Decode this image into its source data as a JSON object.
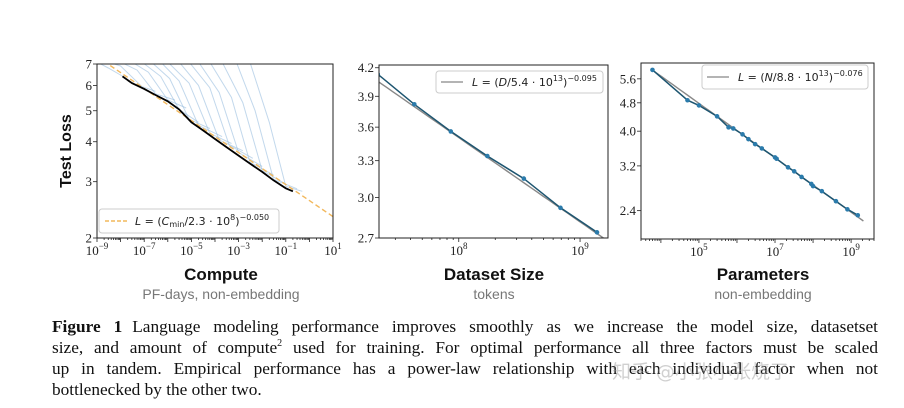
{
  "figure": {
    "caption": {
      "label": "Figure 1",
      "line1": "Language modeling performance improves smoothly as we increase the model size, datasetset",
      "line2a": "size, and amount of compute",
      "line2sup": "2",
      "line2b": " used for training.  For optimal performance all three factors must be scaled",
      "line3": "up in tandem.  Empirical performance has a power-law relationship with each individual factor when not",
      "line4": "bottlenecked by the other two."
    },
    "watermark": "知乎 @小张小张烧了"
  },
  "chart_data": [
    {
      "type": "line",
      "title": "Compute",
      "subtitle": "PF-days, non-embedding",
      "ylabel": "Test Loss",
      "xscale": "log",
      "yscale": "log",
      "xlim": [
        1e-09,
        10
      ],
      "ylim": [
        2,
        7
      ],
      "xticks": [
        -9,
        -7,
        -5,
        -3,
        -1,
        1
      ],
      "tick_base": "10",
      "yticks": [
        2,
        3,
        4,
        5,
        6,
        7
      ],
      "legend": {
        "placement": "lower-left",
        "p1": "L",
        "p2": " = (",
        "p3": "C",
        "p4": "min",
        "p5": "/2.3 · 10",
        "p6": "8",
        "p7": ")",
        "p8": "−0.050"
      },
      "fit": {
        "A": 230000000.0,
        "alpha": 0.05,
        "style": "dashed",
        "color": "#f2b85c"
      },
      "frontier": {
        "color": "#000000",
        "points": [
          [
            1.2e-08,
            6.4
          ],
          [
            3e-08,
            6.1
          ],
          [
            1e-07,
            5.85
          ],
          [
            3e-07,
            5.6
          ],
          [
            1e-06,
            5.35
          ],
          [
            3e-06,
            5.05
          ],
          [
            1e-05,
            4.6
          ],
          [
            3e-05,
            4.35
          ],
          [
            0.0001,
            4.08
          ],
          [
            0.0003,
            3.85
          ],
          [
            0.001,
            3.62
          ],
          [
            0.003,
            3.42
          ],
          [
            0.01,
            3.22
          ],
          [
            0.03,
            3.03
          ],
          [
            0.1,
            2.86
          ],
          [
            0.2,
            2.8
          ]
        ]
      },
      "learning_curves": {
        "color": "#8fb8dc",
        "curves": [
          [
            [
              1e-09,
              7.1
            ],
            [
              3e-09,
              6.8
            ],
            [
              1.5e-08,
              6.35
            ]
          ],
          [
            [
              3e-09,
              7.1
            ],
            [
              1e-08,
              6.9
            ],
            [
              8e-08,
              5.95
            ],
            [
              3e-07,
              5.75
            ]
          ],
          [
            [
              1e-08,
              7.1
            ],
            [
              5e-08,
              6.7
            ],
            [
              3e-07,
              5.65
            ],
            [
              2e-06,
              5.4
            ]
          ],
          [
            [
              3e-08,
              7.1
            ],
            [
              1.5e-07,
              6.6
            ],
            [
              1e-06,
              5.4
            ],
            [
              6e-06,
              5.1
            ]
          ],
          [
            [
              8e-08,
              7.1
            ],
            [
              5e-07,
              6.4
            ],
            [
              3e-06,
              5.05
            ],
            [
              2e-05,
              4.6
            ]
          ],
          [
            [
              2e-07,
              7.1
            ],
            [
              1.2e-06,
              6.3
            ],
            [
              8e-06,
              4.7
            ],
            [
              6e-05,
              4.4
            ]
          ],
          [
            [
              5e-07,
              7.1
            ],
            [
              3e-06,
              6.2
            ],
            [
              2e-05,
              4.5
            ],
            [
              0.0002,
              4.15
            ]
          ],
          [
            [
              1e-06,
              7.1
            ],
            [
              8e-06,
              6.1
            ],
            [
              6e-05,
              4.25
            ],
            [
              0.0005,
              3.95
            ]
          ],
          [
            [
              3e-06,
              7.1
            ],
            [
              2e-05,
              6.0
            ],
            [
              0.00015,
              4.05
            ],
            [
              0.0015,
              3.75
            ]
          ],
          [
            [
              8e-06,
              7.1
            ],
            [
              6e-05,
              5.9
            ],
            [
              0.0004,
              3.9
            ],
            [
              0.004,
              3.55
            ]
          ],
          [
            [
              2e-05,
              7.1
            ],
            [
              0.00015,
              5.7
            ],
            [
              0.001,
              3.7
            ],
            [
              0.01,
              3.35
            ]
          ],
          [
            [
              6e-05,
              7.1
            ],
            [
              0.0005,
              5.5
            ],
            [
              0.003,
              3.45
            ],
            [
              0.03,
              3.15
            ]
          ],
          [
            [
              0.0002,
              7.1
            ],
            [
              0.0015,
              5.3
            ],
            [
              0.01,
              3.25
            ],
            [
              0.1,
              2.95
            ]
          ],
          [
            [
              0.0008,
              7.1
            ],
            [
              0.005,
              5.0
            ],
            [
              0.03,
              3.05
            ],
            [
              0.3,
              2.85
            ]
          ],
          [
            [
              0.003,
              7.1
            ],
            [
              0.02,
              4.6
            ],
            [
              0.1,
              2.9
            ],
            [
              0.5,
              2.8
            ]
          ]
        ]
      }
    },
    {
      "type": "line",
      "title": "Dataset Size",
      "subtitle": "tokens",
      "xscale": "log",
      "yscale": "log",
      "xlim": [
        22000000.0,
        1700000000.0
      ],
      "ylim": [
        2.7,
        4.23
      ],
      "xticks": [
        8,
        9
      ],
      "tick_base": "10",
      "yticks": [
        "2.7",
        "3.0",
        "3.3",
        "3.6",
        "3.9",
        "4.2"
      ],
      "legend": {
        "placement": "upper-right",
        "p1": "L",
        "p2": " = (",
        "p3": "D",
        "p4": "/5.4 · 10",
        "p5": "13",
        "p6": ")",
        "p7": "−0.095"
      },
      "fit": {
        "A": 54000000000000.0,
        "alpha": 0.095,
        "color": "#888888"
      },
      "series": {
        "color": "#2b7bab",
        "x": [
          21500000.0,
          43000000.0,
          86000000.0,
          172000000.0,
          344000000.0,
          690000000.0,
          1380000000.0
        ],
        "y": [
          4.13,
          3.82,
          3.56,
          3.34,
          3.15,
          2.92,
          2.74
        ]
      }
    },
    {
      "type": "line",
      "title": "Parameters",
      "subtitle": "non-embedding",
      "xscale": "log",
      "yscale": "log",
      "xlim": [
        3000.0,
        4000000000.0
      ],
      "ylim": [
        2.0,
        6.2
      ],
      "xticks": [
        5,
        7,
        9
      ],
      "tick_base": "10",
      "yticks": [
        "2.4",
        "3.2",
        "4.0",
        "4.8",
        "5.6"
      ],
      "legend": {
        "placement": "upper-right",
        "p1": "L",
        "p2": " = (",
        "p3": "N",
        "p4": "/8.8 · 10",
        "p5": "13",
        "p6": ")",
        "p7": "−0.076"
      },
      "fit": {
        "A": 88000000000000.0,
        "alpha": 0.076,
        "color": "#888888"
      },
      "series": {
        "color": "#2b7bab",
        "x": [
          6000.0,
          50000.0,
          100000.0,
          300000.0,
          600000.0,
          800000.0,
          1400000.0,
          2000000.0,
          3000000.0,
          4500000.0,
          10000000.0,
          11000000.0,
          22000000.0,
          32000000.0,
          50000000.0,
          90000000.0,
          100000000.0,
          170000000.0,
          400000000.0,
          800000000.0,
          1500000000.0
        ],
        "y": [
          5.93,
          4.88,
          4.72,
          4.4,
          4.1,
          4.07,
          3.92,
          3.8,
          3.68,
          3.58,
          3.38,
          3.35,
          3.17,
          3.09,
          2.98,
          2.85,
          2.81,
          2.72,
          2.55,
          2.42,
          2.33
        ]
      }
    }
  ]
}
